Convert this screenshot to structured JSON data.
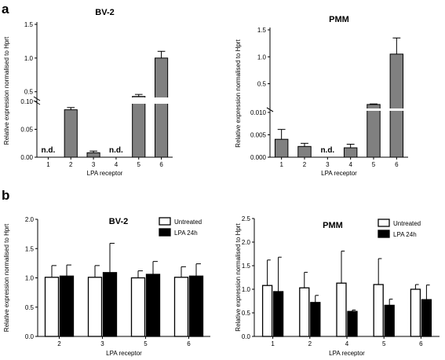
{
  "panels": {
    "a": "a",
    "b": "b"
  },
  "chart_data": [
    {
      "type": "bar",
      "title": "BV-2",
      "xlabel": "LPA receptor",
      "ylabel": "Relative expression normalised to Hprt",
      "categories": [
        "1",
        "2",
        "3",
        "4",
        "5",
        "6"
      ],
      "values": [
        0,
        0.085,
        0.008,
        0,
        0.43,
        1.0
      ],
      "errors": [
        0,
        0.004,
        0.003,
        0,
        0.03,
        0.1
      ],
      "nd_labels": [
        "n.d.",
        "",
        "",
        "n.d.",
        "",
        ""
      ],
      "y_axis_broken": true,
      "yticks_lower": [
        "0.00",
        "0.05",
        "0.10"
      ],
      "yticks_upper": [
        "0.5",
        "1.0",
        "1.5"
      ],
      "color": "#808080"
    },
    {
      "type": "bar",
      "title": "PMM",
      "xlabel": "LPA receptor",
      "ylabel": "Relative expression normalised to Hprt",
      "categories": [
        "1",
        "2",
        "3",
        "4",
        "5",
        "6"
      ],
      "values": [
        0.004,
        0.0024,
        0,
        0.0021,
        0.115,
        1.05
      ],
      "errors": [
        0.0022,
        0.0007,
        0,
        0.0008,
        0.01,
        0.3
      ],
      "nd_labels": [
        "",
        "",
        "n.d.",
        "",
        "",
        ""
      ],
      "y_axis_broken": true,
      "yticks_lower": [
        "0.000",
        "0.005",
        "0.010"
      ],
      "yticks_upper": [
        "0.5",
        "1.0",
        "1.5"
      ],
      "color": "#808080"
    },
    {
      "type": "bar",
      "title": "BV-2",
      "xlabel": "LPA receptor",
      "ylabel": "Relative expression normalised to Hprt",
      "categories": [
        "2",
        "3",
        "5",
        "6"
      ],
      "ylim": [
        0,
        2.0
      ],
      "yticks": [
        "0.0",
        "0.5",
        "1.0",
        "1.5",
        "2.0"
      ],
      "series": [
        {
          "name": "Untreated",
          "values": [
            1.01,
            1.01,
            1.0,
            1.01
          ],
          "errors": [
            0.2,
            0.2,
            0.12,
            0.18
          ],
          "fill": "#ffffff"
        },
        {
          "name": "LPA 24h",
          "values": [
            1.03,
            1.09,
            1.06,
            1.03
          ],
          "errors": [
            0.19,
            0.5,
            0.22,
            0.21
          ],
          "fill": "#000000"
        }
      ]
    },
    {
      "type": "bar",
      "title": "PMM",
      "xlabel": "LPA receptor",
      "ylabel": "Relative expression normalised to Hprt",
      "categories": [
        "1",
        "2",
        "4",
        "5",
        "6"
      ],
      "ylim": [
        0,
        2.5
      ],
      "yticks": [
        "0.0",
        "0.5",
        "1.0",
        "1.5",
        "2.0",
        "2.5"
      ],
      "series": [
        {
          "name": "Untreated",
          "values": [
            1.08,
            1.03,
            1.13,
            1.1,
            1.0
          ],
          "errors": [
            0.54,
            0.33,
            0.68,
            0.55,
            0.1
          ],
          "fill": "#ffffff"
        },
        {
          "name": "LPA 24h",
          "values": [
            0.95,
            0.72,
            0.53,
            0.66,
            0.78
          ],
          "errors": [
            0.73,
            0.15,
            0.03,
            0.13,
            0.31
          ],
          "fill": "#000000"
        }
      ]
    }
  ]
}
